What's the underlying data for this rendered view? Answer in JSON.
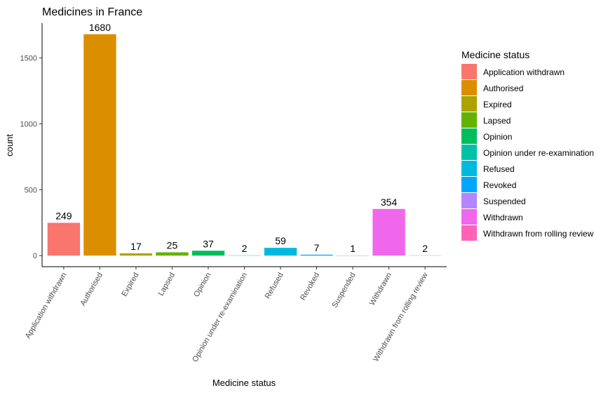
{
  "chart_data": {
    "type": "bar",
    "title": "Medicines in France",
    "xlabel": "Medicine status",
    "ylabel": "count",
    "categories": [
      "Application withdrawn",
      "Authorised",
      "Expired",
      "Lapsed",
      "Opinion",
      "Opinion under re-examination",
      "Refused",
      "Revoked",
      "Suspended",
      "Withdrawn",
      "Withdrawn from rolling review"
    ],
    "values": [
      249,
      1680,
      17,
      25,
      37,
      2,
      59,
      7,
      1,
      354,
      2
    ],
    "colors": [
      "#F8766D",
      "#DB8E00",
      "#AEA200",
      "#64B200",
      "#00BD5C",
      "#00C1A7",
      "#00BADE",
      "#00A6FF",
      "#B385FF",
      "#EF67EB",
      "#FF63B6"
    ],
    "yticks": [
      0,
      500,
      1000,
      1500
    ],
    "ylim": [
      -84,
      1764
    ],
    "grid": false,
    "legend": {
      "title": "Medicine status",
      "position": "right",
      "items": [
        "Application withdrawn",
        "Authorised",
        "Expired",
        "Lapsed",
        "Opinion",
        "Opinion under re-examination",
        "Refused",
        "Revoked",
        "Suspended",
        "Withdrawn",
        "Withdrawn from rolling review"
      ]
    }
  }
}
